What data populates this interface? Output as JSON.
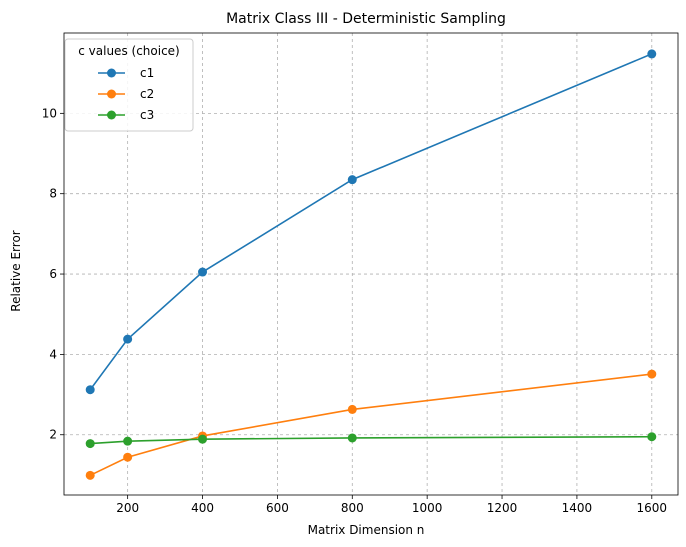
{
  "chart_data": {
    "type": "line",
    "title": "Matrix Class III - Deterministic Sampling",
    "xlabel": "Matrix Dimension n",
    "ylabel": "Relative Error",
    "x": [
      100,
      200,
      400,
      800,
      1600
    ],
    "xlim": [
      30,
      1670
    ],
    "ylim": [
      0.5,
      12.0
    ],
    "xticks": [
      200,
      400,
      600,
      800,
      1000,
      1200,
      1400,
      1600
    ],
    "yticks": [
      2,
      4,
      6,
      8,
      10
    ],
    "grid": true,
    "legend": {
      "title": "c values (choice)",
      "position": "top-left"
    },
    "series": [
      {
        "name": "c1",
        "color": "#1f77b4",
        "values": [
          3.12,
          4.38,
          6.05,
          8.35,
          11.48
        ]
      },
      {
        "name": "c2",
        "color": "#ff7f0e",
        "values": [
          0.99,
          1.44,
          1.97,
          2.63,
          3.51
        ]
      },
      {
        "name": "c3",
        "color": "#2ca02c",
        "values": [
          1.78,
          1.84,
          1.89,
          1.92,
          1.95
        ]
      }
    ]
  }
}
